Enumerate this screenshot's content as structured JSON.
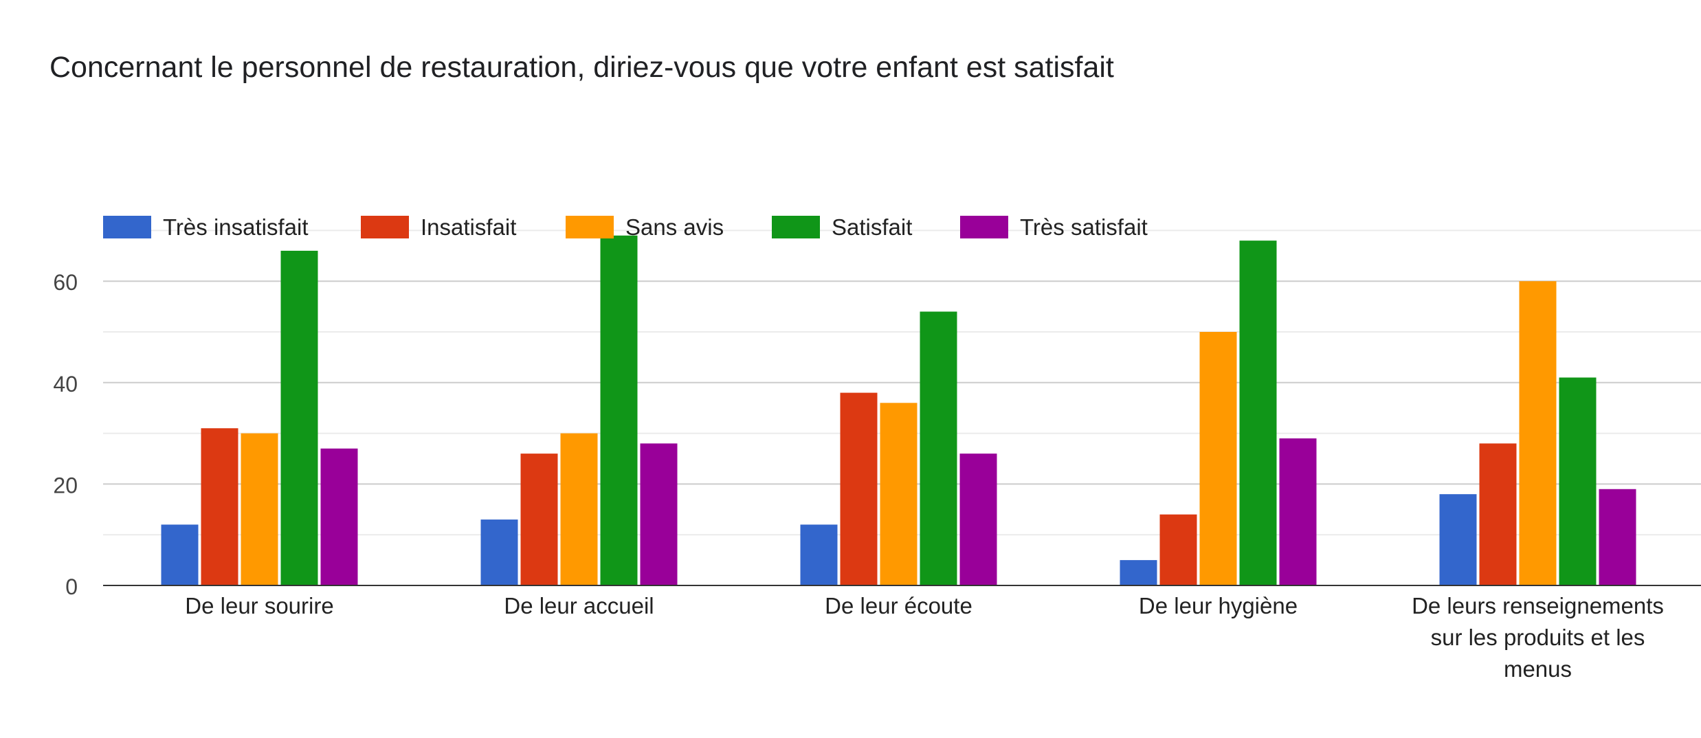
{
  "chart_data": {
    "type": "bar",
    "title": "Concernant le personnel de restauration, diriez-vous que votre enfant est satisfait",
    "xlabel": "",
    "ylabel": "",
    "ylim": [
      0,
      70
    ],
    "yticks": [
      0,
      20,
      40,
      60
    ],
    "grid": true,
    "legend_position": "top",
    "categories": [
      [
        "De leur sourire"
      ],
      [
        "De leur accueil"
      ],
      [
        "De leur écoute"
      ],
      [
        "De leur hygiène"
      ],
      [
        "De leurs renseignements",
        "sur les produits et les",
        "menus"
      ]
    ],
    "series": [
      {
        "name": "Très insatisfait",
        "color": "#3366cc",
        "values": [
          12,
          13,
          12,
          5,
          18
        ]
      },
      {
        "name": "Insatisfait",
        "color": "#dc3912",
        "values": [
          31,
          26,
          38,
          14,
          28
        ]
      },
      {
        "name": "Sans avis",
        "color": "#ff9900",
        "values": [
          30,
          30,
          36,
          50,
          60
        ]
      },
      {
        "name": "Satisfait",
        "color": "#109618",
        "values": [
          66,
          69,
          54,
          68,
          41
        ]
      },
      {
        "name": "Très satisfait",
        "color": "#990099",
        "values": [
          27,
          28,
          26,
          29,
          19
        ]
      }
    ]
  }
}
